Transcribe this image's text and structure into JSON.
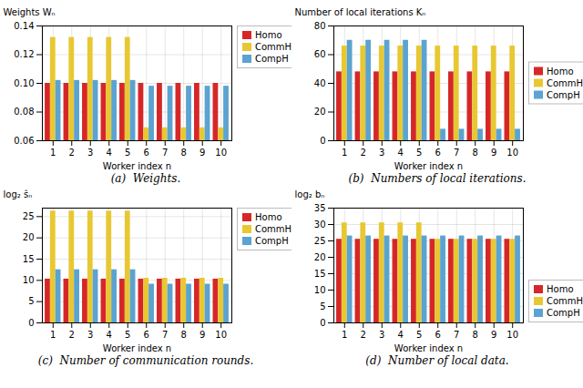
{
  "chart_data": [
    {
      "type": "bar",
      "caption": "(a)  Weights.",
      "xlabel": "Worker index n",
      "ylabel": "Weights Wₙ",
      "categories": [
        1,
        2,
        3,
        4,
        5,
        6,
        7,
        8,
        9,
        10
      ],
      "series": [
        {
          "name": "Homo",
          "color": "#d62728",
          "values": [
            0.1,
            0.1,
            0.1,
            0.1,
            0.1,
            0.1,
            0.1,
            0.1,
            0.1,
            0.1
          ]
        },
        {
          "name": "CommH",
          "color": "#e8c832",
          "values": [
            0.132,
            0.132,
            0.132,
            0.132,
            0.132,
            0.069,
            0.069,
            0.069,
            0.069,
            0.069
          ]
        },
        {
          "name": "CompH",
          "color": "#5ba3d0",
          "values": [
            0.102,
            0.102,
            0.102,
            0.102,
            0.102,
            0.098,
            0.098,
            0.098,
            0.098,
            0.098
          ]
        }
      ],
      "ylim": [
        0.06,
        0.14
      ],
      "yticks": [
        0.06,
        0.08,
        {
          "value": 0.1,
          "label": "0.10"
        },
        0.12,
        0.14
      ],
      "grid": true,
      "legend": "upper right"
    },
    {
      "type": "bar",
      "caption": "(b)  Numbers of local iterations.",
      "xlabel": "Worker index n",
      "ylabel": "Number of local iterations Kₙ",
      "categories": [
        1,
        2,
        3,
        4,
        5,
        6,
        7,
        8,
        9,
        10
      ],
      "series": [
        {
          "name": "Homo",
          "color": "#d62728",
          "values": [
            48,
            48,
            48,
            48,
            48,
            48,
            48,
            48,
            48,
            48
          ]
        },
        {
          "name": "CommH",
          "color": "#e8c832",
          "values": [
            66,
            66,
            66,
            66,
            66,
            66,
            66,
            66,
            66,
            66
          ]
        },
        {
          "name": "CompH",
          "color": "#5ba3d0",
          "values": [
            70,
            70,
            70,
            70,
            70,
            8,
            8,
            8,
            8,
            8
          ]
        }
      ],
      "ylim": [
        0,
        80
      ],
      "yticks": [
        0,
        20,
        40,
        60,
        80
      ],
      "grid": true,
      "legend": "center right"
    },
    {
      "type": "bar",
      "caption": "(c)  Number of communication rounds.",
      "xlabel": "Worker index n",
      "ylabel": "log₂ ŝₙ",
      "categories": [
        1,
        2,
        3,
        4,
        5,
        6,
        7,
        8,
        9,
        10
      ],
      "series": [
        {
          "name": "Homo",
          "color": "#d62728",
          "values": [
            10.3,
            10.3,
            10.3,
            10.3,
            10.3,
            10.3,
            10.3,
            10.3,
            10.3,
            10.3
          ]
        },
        {
          "name": "CommH",
          "color": "#e8c832",
          "values": [
            26.3,
            26.3,
            26.3,
            26.3,
            26.3,
            10.5,
            10.5,
            10.5,
            10.5,
            10.5
          ]
        },
        {
          "name": "CompH",
          "color": "#5ba3d0",
          "values": [
            12.5,
            12.5,
            12.5,
            12.5,
            12.5,
            9.1,
            9.1,
            9.1,
            9.1,
            9.1
          ]
        }
      ],
      "ylim": [
        0,
        27
      ],
      "yticks": [
        0,
        5,
        10,
        15,
        20,
        25
      ],
      "grid": true,
      "legend": "upper right"
    },
    {
      "type": "bar",
      "caption": "(d)  Number of local data.",
      "xlabel": "Worker index n",
      "ylabel": "log₂ bₙ",
      "categories": [
        1,
        2,
        3,
        4,
        5,
        6,
        7,
        8,
        9,
        10
      ],
      "series": [
        {
          "name": "Homo",
          "color": "#d62728",
          "values": [
            25.5,
            25.5,
            25.5,
            25.5,
            25.5,
            25.5,
            25.5,
            25.5,
            25.5,
            25.5
          ]
        },
        {
          "name": "CommH",
          "color": "#e8c832",
          "values": [
            30.5,
            30.5,
            30.5,
            30.5,
            30.5,
            25.5,
            25.5,
            25.5,
            25.5,
            25.5
          ]
        },
        {
          "name": "CompH",
          "color": "#5ba3d0",
          "values": [
            26.5,
            26.5,
            26.5,
            26.5,
            26.5,
            26.5,
            26.5,
            26.5,
            26.5,
            26.5
          ]
        }
      ],
      "ylim": [
        0,
        35
      ],
      "yticks": [
        0,
        5,
        10,
        15,
        20,
        25,
        30,
        35
      ],
      "grid": true,
      "legend": "lower right"
    }
  ]
}
